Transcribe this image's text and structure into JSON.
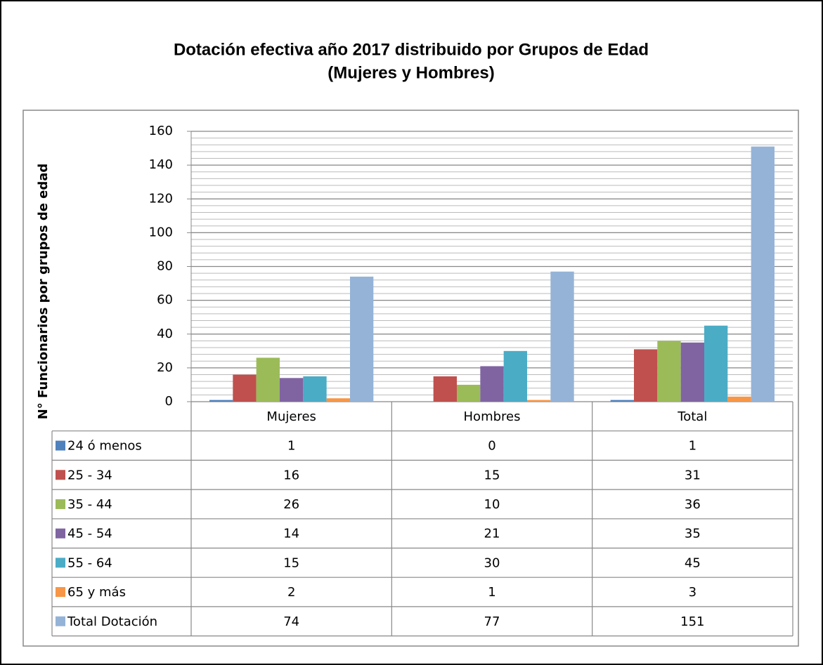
{
  "chart_data": {
    "type": "bar",
    "title": "Dotación efectiva año 2017 distribuido por Grupos de Edad",
    "subtitle": "(Mujeres y Hombres)",
    "y_label": "N° Funcionarios por grupos de edad",
    "categories": [
      "Mujeres",
      "Hombres",
      "Total"
    ],
    "series": [
      {
        "name": "24 ó menos",
        "color": "#4f81bd",
        "values": [
          1,
          0,
          1
        ]
      },
      {
        "name": "25 - 34",
        "color": "#c0504d",
        "values": [
          16,
          15,
          31
        ]
      },
      {
        "name": "35 - 44",
        "color": "#9bbb59",
        "values": [
          26,
          10,
          36
        ]
      },
      {
        "name": "45 - 54",
        "color": "#8064a2",
        "values": [
          14,
          21,
          35
        ]
      },
      {
        "name": "55 - 64",
        "color": "#4bacc6",
        "values": [
          15,
          30,
          45
        ]
      },
      {
        "name": "65 y más",
        "color": "#f79646",
        "values": [
          2,
          1,
          3
        ]
      },
      {
        "name": "Total Dotación",
        "color": "#95b3d7",
        "values": [
          74,
          77,
          151
        ]
      }
    ],
    "ylim": [
      0,
      160
    ],
    "yticks": [
      0,
      20,
      40,
      60,
      80,
      100,
      120,
      140,
      160
    ],
    "grid": true,
    "minor_grid": 4
  }
}
